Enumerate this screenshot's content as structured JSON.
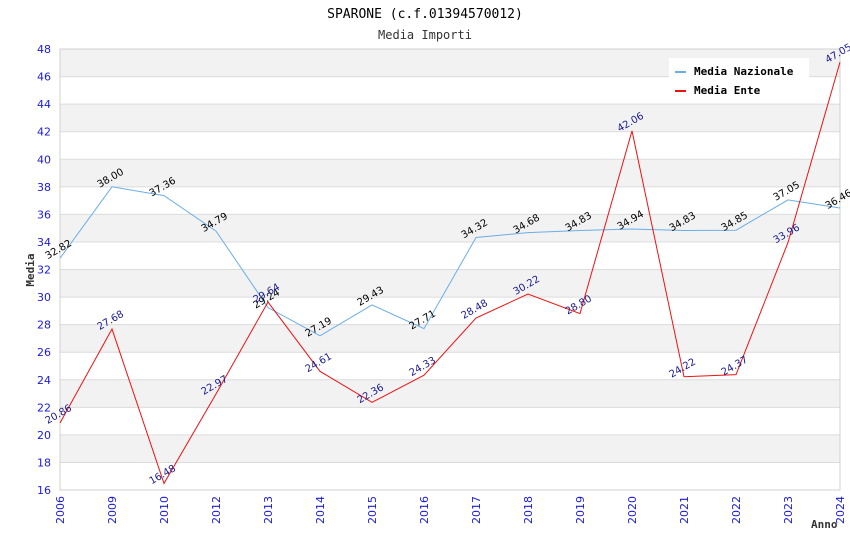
{
  "chart_data": {
    "type": "line",
    "title": "SPARONE (c.f.01394570012)",
    "subtitle": "Media Importi",
    "xlabel": "Anno",
    "ylabel": "Media",
    "ylim": [
      16,
      48
    ],
    "yticks": [
      16,
      18,
      20,
      22,
      24,
      26,
      28,
      30,
      32,
      34,
      36,
      38,
      40,
      42,
      44,
      46,
      48
    ],
    "grid": true,
    "legend_position": "top-right",
    "categories": [
      "2006",
      "2009",
      "2010",
      "2012",
      "2013",
      "2014",
      "2015",
      "2016",
      "2017",
      "2018",
      "2019",
      "2020",
      "2021",
      "2022",
      "2023",
      "2024"
    ],
    "series": [
      {
        "name": "Media Nazionale",
        "color": "#6aaee8",
        "values": [
          32.82,
          38.0,
          37.36,
          34.79,
          29.24,
          27.19,
          29.43,
          27.71,
          34.32,
          34.68,
          34.83,
          34.94,
          34.83,
          34.85,
          37.05,
          36.46
        ],
        "labels": [
          "32.82",
          "38.00",
          "37.36",
          "34.79",
          "29.24",
          "27.19",
          "29.43",
          "27.71",
          "34.32",
          "34.68",
          "34.83",
          "34.94",
          "34.83",
          "34.85",
          "37.05",
          "36.46"
        ]
      },
      {
        "name": "Media Ente",
        "color": "#ee1111",
        "values": [
          20.86,
          27.68,
          16.48,
          22.97,
          29.64,
          24.61,
          22.36,
          24.33,
          28.48,
          30.22,
          28.8,
          42.06,
          24.22,
          24.37,
          33.96,
          47.05
        ],
        "labels": [
          "20.86",
          "27.68",
          "16.48",
          "22.97",
          "29.64",
          "24.61",
          "22.36",
          "24.33",
          "28.48",
          "30.22",
          "28.80",
          "42.06",
          "24.22",
          "24.37",
          "33.96",
          "47.05"
        ]
      }
    ]
  }
}
